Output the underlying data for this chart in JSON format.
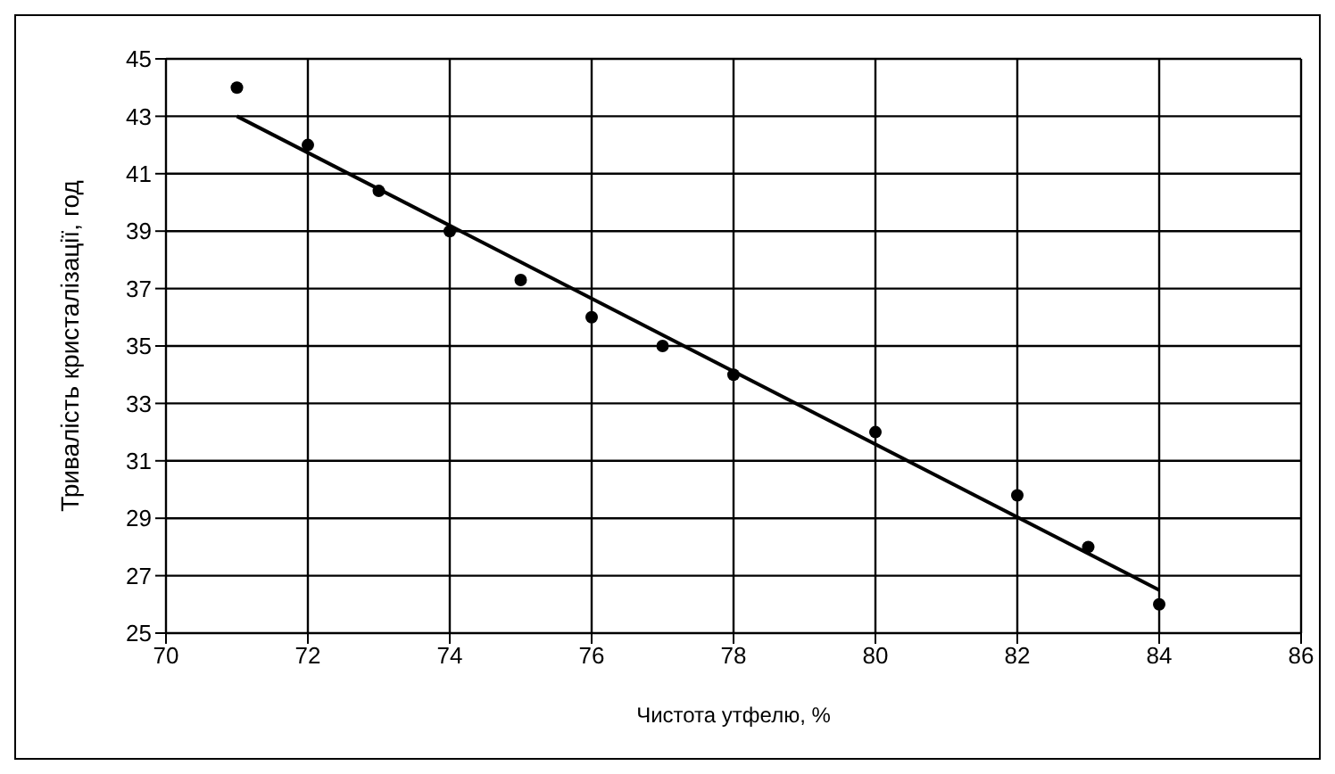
{
  "chart_data": {
    "type": "scatter",
    "xlabel": "Чистота утфелю, %",
    "ylabel": "Тривалість кристалізації, год",
    "xlim": [
      70,
      86
    ],
    "xticks": [
      70,
      72,
      74,
      76,
      78,
      80,
      82,
      84,
      86
    ],
    "ylim": [
      25,
      45
    ],
    "yticks": [
      25,
      27,
      29,
      31,
      33,
      35,
      37,
      39,
      41,
      43,
      45
    ],
    "grid": true,
    "marker": "circle",
    "series": [
      {
        "color": "#000000",
        "x": [
          71,
          72,
          73,
          74,
          75,
          76,
          77,
          78,
          80,
          82,
          83,
          84
        ],
        "values": [
          44,
          42,
          40.4,
          39,
          37.3,
          36,
          35,
          34,
          32,
          29.8,
          28,
          26
        ]
      },
      {
        "type": "line",
        "color": "#000000",
        "marker": "none",
        "x": [
          71,
          84
        ],
        "values": [
          43,
          26.5
        ]
      }
    ]
  }
}
